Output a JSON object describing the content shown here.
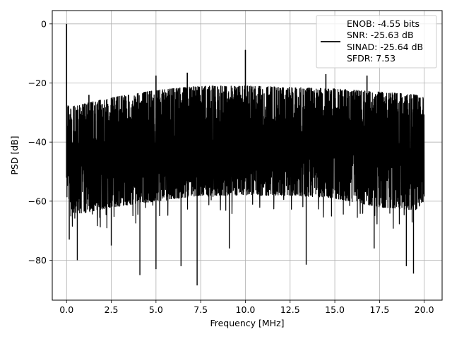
{
  "chart_data": {
    "type": "line",
    "xlabel": "Frequency [MHz]",
    "ylabel": "PSD [dB]",
    "xlim": [
      -0.8,
      21.0
    ],
    "ylim": [
      -93.5,
      4.5
    ],
    "x_ticks": [
      0.0,
      2.5,
      5.0,
      7.5,
      10.0,
      12.5,
      15.0,
      17.5,
      20.0
    ],
    "x_tick_labels": [
      "0.0",
      "2.5",
      "5.0",
      "7.5",
      "10.0",
      "12.5",
      "15.0",
      "17.5",
      "20.0"
    ],
    "y_ticks": [
      0,
      -20,
      -40,
      -60,
      -80
    ],
    "y_tick_labels": [
      "0",
      "−20",
      "−40",
      "−60",
      "−80"
    ],
    "grid": true,
    "legend_position": "top-right",
    "legend": [
      "ENOB: -4.55 bits",
      "SNR: -25.63 dB",
      "SINAD: -25.64 dB",
      "SFDR: 7.53"
    ],
    "series": [
      {
        "color": "#000000",
        "x_range": [
          0.0,
          20.0
        ],
        "envelope": {
          "x": [
            0.0,
            0.05,
            0.3,
            1.0,
            2.5,
            5.0,
            7.5,
            10.0,
            12.5,
            15.0,
            17.5,
            19.5,
            20.0
          ],
          "upper": [
            -27.0,
            -27.5,
            -28.0,
            -27.0,
            -25.0,
            -22.5,
            -21.0,
            -21.0,
            -21.5,
            -22.0,
            -23.0,
            -24.0,
            -25.0
          ],
          "lower": [
            -58.0,
            -60.0,
            -64.0,
            -64.0,
            -62.0,
            -60.0,
            -58.0,
            -58.0,
            -58.0,
            -59.0,
            -62.0,
            -63.0,
            -60.0
          ]
        },
        "peaks": [
          {
            "x": 0.0,
            "y": 0.0
          },
          {
            "x": 1.25,
            "y": -24.0
          },
          {
            "x": 5.0,
            "y": -17.5
          },
          {
            "x": 6.75,
            "y": -16.5
          },
          {
            "x": 10.0,
            "y": -8.8
          },
          {
            "x": 14.5,
            "y": -17.0
          },
          {
            "x": 16.8,
            "y": -17.5
          }
        ],
        "dips": [
          {
            "x": 0.15,
            "y": -73.0
          },
          {
            "x": 0.6,
            "y": -80.0
          },
          {
            "x": 2.5,
            "y": -75.0
          },
          {
            "x": 4.1,
            "y": -85.0
          },
          {
            "x": 5.0,
            "y": -83.0
          },
          {
            "x": 6.4,
            "y": -82.0
          },
          {
            "x": 7.3,
            "y": -88.5
          },
          {
            "x": 9.1,
            "y": -76.0
          },
          {
            "x": 13.4,
            "y": -81.5
          },
          {
            "x": 17.2,
            "y": -76.0
          },
          {
            "x": 19.0,
            "y": -82.0
          },
          {
            "x": 19.4,
            "y": -84.5
          }
        ]
      }
    ]
  }
}
